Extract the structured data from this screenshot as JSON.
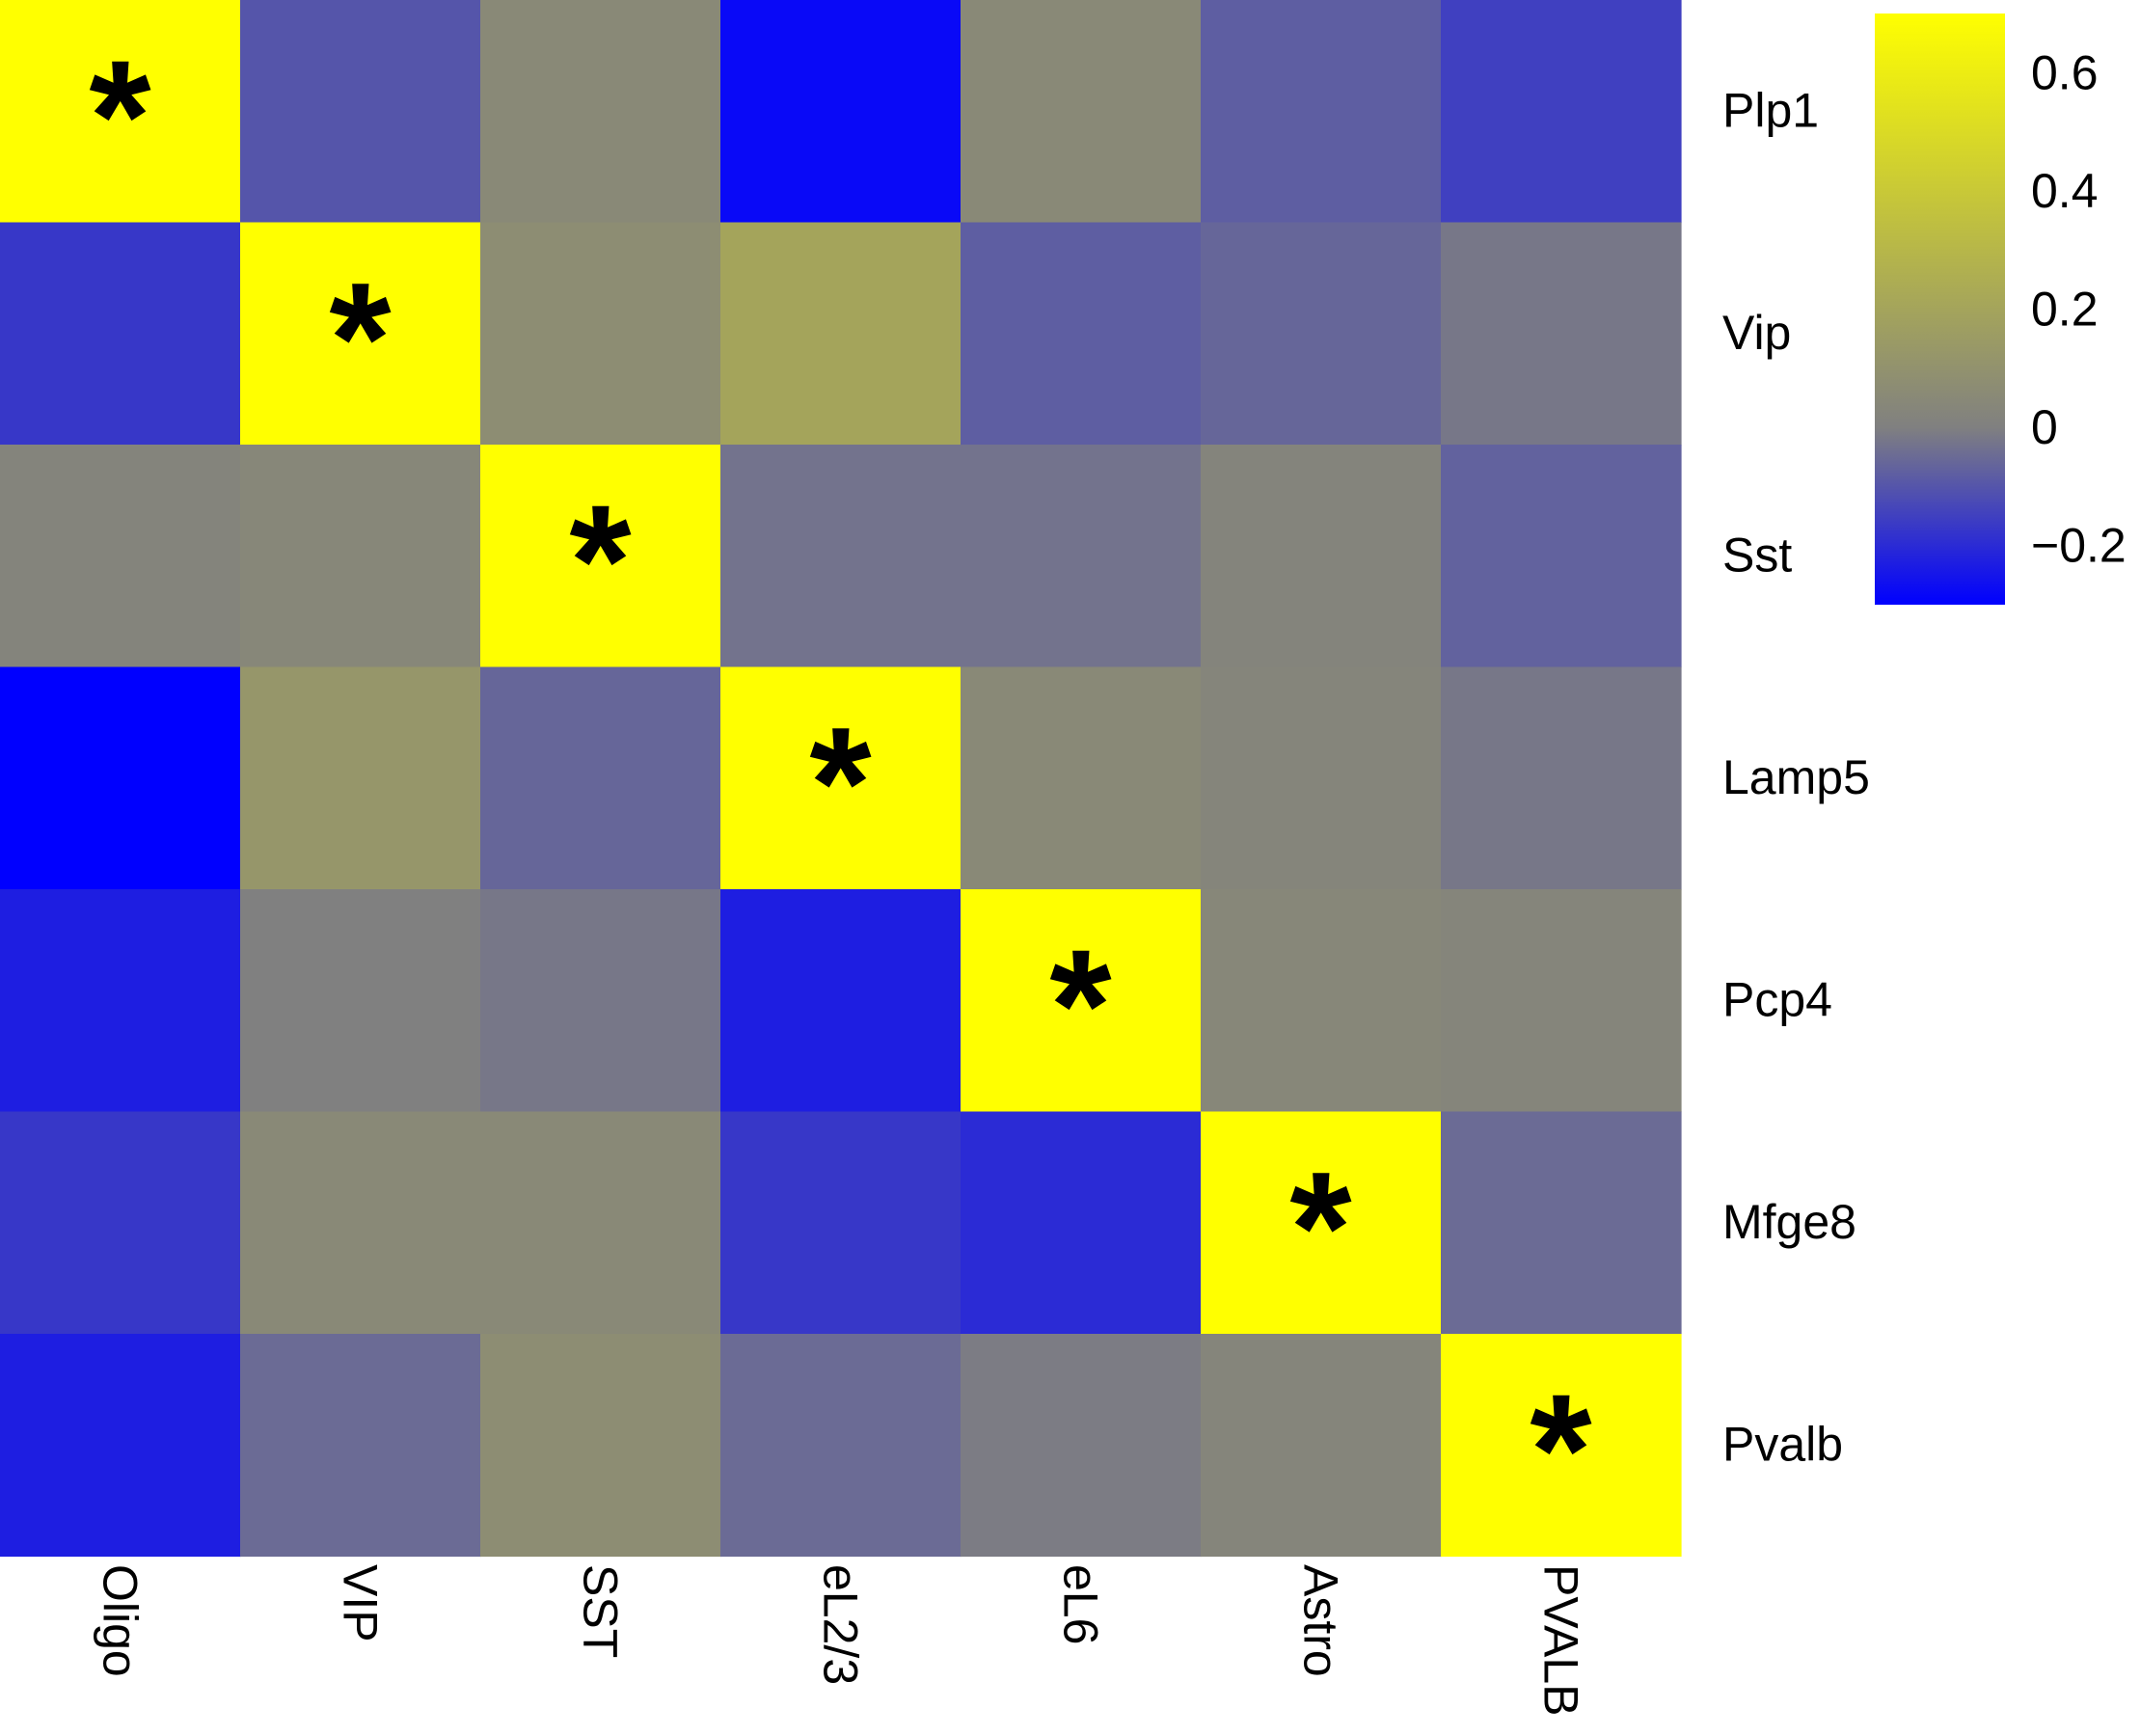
{
  "chart_data": {
    "type": "heatmap",
    "title": "",
    "xlabel": "",
    "ylabel": "",
    "x_categories": [
      "Oligo",
      "VIP",
      "SST",
      "eL2/3",
      "eL6",
      "Astro",
      "PVALB"
    ],
    "y_categories": [
      "Plp1",
      "Vip",
      "Sst",
      "Lamp5",
      "Pcp4",
      "Mfge8",
      "Pvalb"
    ],
    "values": [
      [
        0.7,
        -0.1,
        0.05,
        -0.28,
        0.05,
        -0.08,
        -0.15
      ],
      [
        -0.17,
        0.7,
        0.07,
        0.2,
        -0.08,
        -0.06,
        -0.02
      ],
      [
        0.02,
        0.04,
        0.7,
        -0.03,
        -0.03,
        0.02,
        -0.07
      ],
      [
        -0.3,
        0.12,
        -0.06,
        0.7,
        0.05,
        0.03,
        -0.02
      ],
      [
        -0.23,
        0.0,
        -0.02,
        -0.23,
        0.7,
        0.04,
        0.03
      ],
      [
        -0.17,
        0.05,
        0.05,
        -0.17,
        -0.2,
        0.7,
        -0.05
      ],
      [
        -0.23,
        -0.05,
        0.07,
        -0.05,
        -0.01,
        0.03,
        0.7
      ]
    ],
    "significant": [
      [
        true,
        false,
        false,
        false,
        false,
        false,
        false
      ],
      [
        false,
        true,
        false,
        false,
        false,
        false,
        false
      ],
      [
        false,
        false,
        true,
        false,
        false,
        false,
        false
      ],
      [
        false,
        false,
        false,
        true,
        false,
        false,
        false
      ],
      [
        false,
        false,
        false,
        false,
        true,
        false,
        false
      ],
      [
        false,
        false,
        false,
        false,
        false,
        true,
        false
      ],
      [
        false,
        false,
        false,
        false,
        false,
        false,
        true
      ]
    ],
    "significance_marker": "*",
    "colorbar": {
      "range": [
        -0.3,
        0.7
      ],
      "ticks": [
        {
          "value": 0.6,
          "label": "0.6"
        },
        {
          "value": 0.4,
          "label": "0.4"
        },
        {
          "value": 0.2,
          "label": "0.2"
        },
        {
          "value": 0.0,
          "label": "0"
        },
        {
          "value": -0.2,
          "label": "−0.2"
        }
      ],
      "colors": {
        "low": "#0000ff",
        "mid": "#808080",
        "high": "#ffff00"
      }
    },
    "grid": false,
    "legend_position": "top-right"
  }
}
